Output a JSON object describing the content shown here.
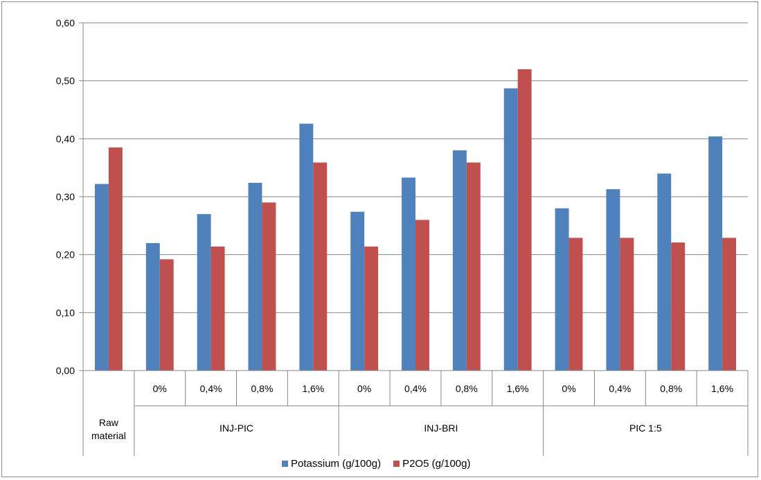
{
  "chart_data": {
    "type": "bar",
    "ylim": [
      0,
      0.6
    ],
    "yticks": [
      "0,00",
      "0,10",
      "0,20",
      "0,30",
      "0,40",
      "0,50",
      "0,60"
    ],
    "grid": true,
    "legend_position": "bottom",
    "groups": [
      {
        "label": "Raw\nmaterial",
        "categories": [
          ""
        ]
      },
      {
        "label": "INJ-PIC",
        "categories": [
          "0%",
          "0,4%",
          "0,8%",
          "1,6%"
        ]
      },
      {
        "label": "INJ-BRI",
        "categories": [
          "0%",
          "0,4%",
          "0,8%",
          "1,6%"
        ]
      },
      {
        "label": "PIC 1:5",
        "categories": [
          "0%",
          "0,4%",
          "0,8%",
          "1,6%"
        ]
      }
    ],
    "series": [
      {
        "name": "Potassium (g/100g)",
        "color": "#4f81bd",
        "values": [
          0.322,
          0.22,
          0.27,
          0.324,
          0.426,
          0.274,
          0.333,
          0.38,
          0.487,
          0.28,
          0.313,
          0.34,
          0.404
        ]
      },
      {
        "name": "P2O5 (g/100g)",
        "color": "#c0504d",
        "values": [
          0.385,
          0.192,
          0.214,
          0.29,
          0.359,
          0.214,
          0.26,
          0.359,
          0.52,
          0.229,
          0.229,
          0.221,
          0.229
        ]
      }
    ]
  }
}
